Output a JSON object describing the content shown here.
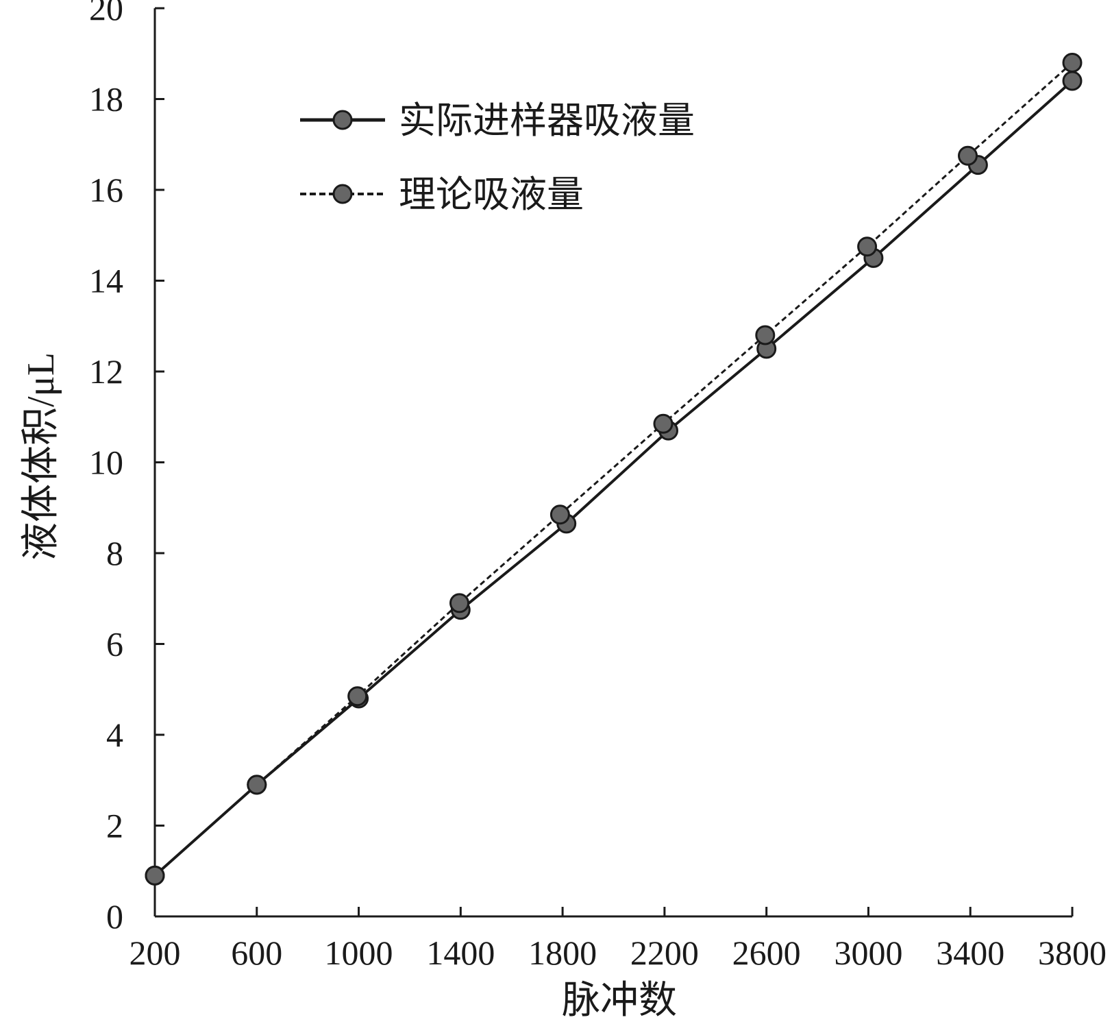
{
  "chart_data": {
    "type": "line",
    "title": "",
    "xlabel": "脉冲数",
    "ylabel": "液体体积/μL",
    "xlim": [
      200,
      3800
    ],
    "ylim": [
      0,
      20
    ],
    "x_ticks": [
      "200",
      "600",
      "1000",
      "1400",
      "1800",
      "2200",
      "2600",
      "3000",
      "3400",
      "3800"
    ],
    "y_ticks": [
      "0",
      "2",
      "4",
      "6",
      "8",
      "10",
      "12",
      "14",
      "16",
      "18",
      "20"
    ],
    "grid": false,
    "legend_position": "top-left",
    "series": [
      {
        "name": "实际进样器吸液量",
        "line_style": "solid",
        "color": "#1a1a1a",
        "marker_color": "#666666",
        "points": [
          {
            "x": 200,
            "y": 0.9
          },
          {
            "x": 600,
            "y": 2.9
          },
          {
            "x": 1000,
            "y": 4.8
          },
          {
            "x": 1400,
            "y": 6.75
          },
          {
            "x": 1815,
            "y": 8.65
          },
          {
            "x": 2215,
            "y": 10.7
          },
          {
            "x": 2600,
            "y": 12.5
          },
          {
            "x": 3020,
            "y": 14.5
          },
          {
            "x": 3430,
            "y": 16.55
          },
          {
            "x": 3800,
            "y": 18.4
          }
        ]
      },
      {
        "name": "理论吸液量",
        "line_style": "dashed",
        "color": "#1a1a1a",
        "marker_color": "#666666",
        "points": [
          {
            "x": 200,
            "y": 0.9
          },
          {
            "x": 600,
            "y": 2.9
          },
          {
            "x": 995,
            "y": 4.85
          },
          {
            "x": 1395,
            "y": 6.9
          },
          {
            "x": 1790,
            "y": 8.85
          },
          {
            "x": 2195,
            "y": 10.85
          },
          {
            "x": 2595,
            "y": 12.8
          },
          {
            "x": 2995,
            "y": 14.75
          },
          {
            "x": 3390,
            "y": 16.75
          },
          {
            "x": 3800,
            "y": 18.8
          }
        ]
      }
    ]
  }
}
